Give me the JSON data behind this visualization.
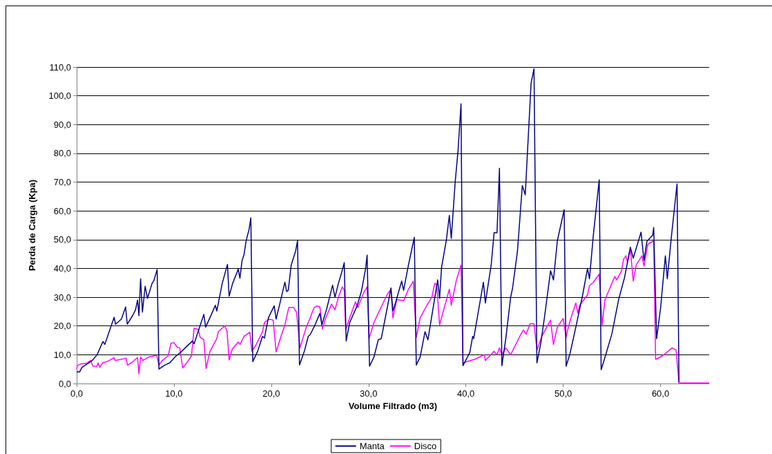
{
  "chart_data": {
    "type": "line",
    "xlabel": "Volume Filtrado (m3)",
    "ylabel": "Perda de Carga (Kpa)",
    "xlim": [
      0,
      65
    ],
    "xticks": [
      {
        "value": 0,
        "label": "0,0"
      },
      {
        "value": 10,
        "label": "10,0"
      },
      {
        "value": 20,
        "label": "20,0"
      },
      {
        "value": 30,
        "label": "30,0"
      },
      {
        "value": 40,
        "label": "40,0"
      },
      {
        "value": 50,
        "label": "50,0"
      },
      {
        "value": 60,
        "label": "60,0"
      }
    ],
    "ylim": [
      0,
      110
    ],
    "yticks": [
      {
        "value": 0,
        "label": "0,0"
      },
      {
        "value": 10,
        "label": "10,0"
      },
      {
        "value": 20,
        "label": "20,0"
      },
      {
        "value": 30,
        "label": "30,0"
      },
      {
        "value": 40,
        "label": "40,0"
      },
      {
        "value": 50,
        "label": "50,0"
      },
      {
        "value": 60,
        "label": "60,0"
      },
      {
        "value": 70,
        "label": "70,0"
      },
      {
        "value": 80,
        "label": "80,0"
      },
      {
        "value": 90,
        "label": "90,0"
      },
      {
        "value": 100,
        "label": "100,0"
      },
      {
        "value": 110,
        "label": "110,0"
      }
    ],
    "grid": "y",
    "legend": "bottom",
    "marker": "none",
    "line_style": "solid",
    "series": [
      {
        "name": "Manta",
        "color": "#000080",
        "x": [
          0,
          0.3,
          0.55,
          1.25,
          1.6,
          2.1,
          2.7,
          2.9,
          3.5,
          3.85,
          4.0,
          4.6,
          5.03,
          5.2,
          5.75,
          6.05,
          6.26,
          6.4,
          6.57,
          6.76,
          7.04,
          7.28,
          7.75,
          7.94,
          8.27,
          8.46,
          9.05,
          9.57,
          10.1,
          10.8,
          11.9,
          12.07,
          13.07,
          13.26,
          13.9,
          14.25,
          14.4,
          14.96,
          15.5,
          15.67,
          16.03,
          16.5,
          16.6,
          16.78,
          17.0,
          17.2,
          17.4,
          17.56,
          17.7,
          17.9,
          18.1,
          18.6,
          19.1,
          19.3,
          19.7,
          20.3,
          20.5,
          20.87,
          21.4,
          21.58,
          21.75,
          22.05,
          22.5,
          22.7,
          22.9,
          23.4,
          23.8,
          24.0,
          24.5,
          25.0,
          25.2,
          25.7,
          26.3,
          26.55,
          26.9,
          27.25,
          27.5,
          27.7,
          28.06,
          28.8,
          29.26,
          29.7,
          29.85,
          30.1,
          30.55,
          31.0,
          31.3,
          31.9,
          32.3,
          32.5,
          32.8,
          33.4,
          33.6,
          34.1,
          34.4,
          34.7,
          34.9,
          35.3,
          35.8,
          36.1,
          37.1,
          37.3,
          37.5,
          38.0,
          38.3,
          38.5,
          38.9,
          39.2,
          39.5,
          39.7,
          40.4,
          40.7,
          40.8,
          41.8,
          42.0,
          42.6,
          42.9,
          43.2,
          43.45,
          43.7,
          44.1,
          44.6,
          44.8,
          45.3,
          45.8,
          46.1,
          46.7,
          47.0,
          47.3,
          47.7,
          48.1,
          48.7,
          49.0,
          49.4,
          50.1,
          50.3,
          50.7,
          51.3,
          52.0,
          52.5,
          52.7,
          53.1,
          53.7,
          53.9,
          54.3,
          55.0,
          55.7,
          56.3,
          56.9,
          57.2,
          58.0,
          58.3,
          58.6,
          59.2,
          59.3,
          59.6,
          60.0,
          60.5,
          60.7,
          61.1,
          61.7,
          61.9
        ],
        "values": [
          4,
          4,
          5.6,
          7.2,
          8,
          10,
          14.6,
          13.6,
          19.6,
          23,
          20.6,
          22.4,
          26.6,
          20.6,
          23.6,
          25.6,
          29,
          23.6,
          36.4,
          24.8,
          33.8,
          29.6,
          34.8,
          35.8,
          39.6,
          5,
          6.4,
          7.2,
          9.2,
          11.2,
          14.8,
          13.8,
          24,
          19.6,
          24.4,
          27.2,
          25.2,
          34.8,
          41.4,
          30.4,
          34.8,
          38.8,
          39.8,
          36.6,
          42.8,
          44.8,
          49.2,
          51.6,
          53.2,
          57.6,
          7.6,
          11.2,
          16.4,
          15.8,
          22.8,
          27,
          22.4,
          27.6,
          35.2,
          32,
          32.4,
          41.2,
          46,
          49.6,
          6.4,
          11.2,
          16.4,
          17,
          20.4,
          24.4,
          20.4,
          26,
          34.2,
          30,
          34.8,
          38.8,
          42,
          14.8,
          21.2,
          26.8,
          32,
          40,
          44.6,
          6,
          9.2,
          15.2,
          15.6,
          26,
          33.2,
          25.2,
          28.4,
          35.6,
          32.4,
          41.2,
          46,
          50.8,
          6.4,
          9.2,
          18,
          15.2,
          36,
          29.6,
          40.4,
          50,
          58.4,
          50.4,
          70,
          81.2,
          97.2,
          6.2,
          10.8,
          16.4,
          15.6,
          35.2,
          28,
          41.2,
          52.4,
          52.4,
          74.8,
          6.2,
          15.6,
          30,
          33.2,
          46,
          68.8,
          65.6,
          104.4,
          109.4,
          7.2,
          14,
          23.6,
          39.2,
          36,
          49.6,
          60.4,
          6,
          10.4,
          19.6,
          30.8,
          40,
          36.4,
          51.6,
          70.8,
          4.8,
          9.2,
          17.2,
          29.2,
          36.8,
          47.4,
          43.6,
          52.6,
          42.8,
          49.4,
          51.6,
          54.2,
          15.6,
          26,
          44.4,
          36.4,
          50.4,
          69.4,
          0.4
        ]
      },
      {
        "name": "Disco",
        "color": "#ff00ff",
        "x": [
          0,
          0.07,
          0.43,
          1.0,
          1.44,
          1.68,
          2.1,
          2.2,
          2.37,
          2.67,
          3.14,
          3.85,
          3.97,
          5.08,
          5.22,
          5.63,
          6.26,
          6.4,
          6.57,
          6.8,
          7.4,
          8.22,
          8.46,
          8.8,
          9.4,
          9.7,
          10.0,
          10.35,
          10.6,
          10.9,
          11.4,
          11.8,
          12.07,
          12.5,
          12.7,
          13.07,
          13.3,
          13.7,
          14.4,
          14.56,
          15.2,
          15.45,
          15.67,
          16.0,
          16.6,
          16.8,
          17.2,
          17.8,
          18.0,
          18.4,
          19.1,
          19.3,
          19.8,
          20.2,
          20.5,
          21.0,
          21.4,
          21.8,
          22.3,
          22.6,
          22.95,
          23.6,
          23.95,
          24.4,
          24.7,
          25.0,
          25.25,
          25.6,
          26.2,
          26.55,
          26.9,
          27.3,
          27.5,
          27.65,
          28.06,
          28.65,
          28.9,
          29.5,
          29.85,
          30.05,
          30.55,
          31.1,
          31.9,
          32.3,
          32.5,
          32.9,
          33.6,
          34.1,
          34.6,
          34.9,
          35.3,
          36.0,
          36.5,
          36.8,
          37.0,
          37.3,
          38.3,
          38.5,
          39.0,
          39.5,
          39.7,
          40.9,
          41.9,
          42.0,
          42.9,
          43.2,
          43.45,
          43.7,
          44.1,
          44.6,
          45.6,
          45.9,
          46.2,
          46.6,
          47.0,
          47.3,
          47.8,
          48.7,
          49.0,
          49.4,
          50.0,
          50.3,
          50.5,
          50.8,
          51.3,
          51.5,
          51.7,
          52.5,
          52.7,
          53.1,
          53.7,
          54.0,
          54.3,
          55.3,
          55.5,
          56.0,
          56.2,
          56.45,
          56.6,
          56.9,
          57.2,
          57.5,
          58.1,
          58.3,
          58.7,
          59.3,
          59.5,
          60.2,
          61.0,
          61.2,
          61.6,
          61.9,
          65
        ],
        "values": [
          5,
          6.2,
          6.8,
          7,
          8,
          6,
          6,
          7.2,
          5.6,
          7.2,
          7.6,
          9,
          8,
          8.8,
          6.4,
          7.2,
          9,
          3.4,
          9.2,
          8,
          9.2,
          9.8,
          6.4,
          8,
          9.6,
          14,
          14.2,
          12.6,
          12.4,
          5.4,
          7.6,
          9.6,
          19.2,
          18.8,
          16,
          15.2,
          5.2,
          11.2,
          15.6,
          18,
          20,
          18.4,
          8.2,
          12,
          14.4,
          13.6,
          16.4,
          17.8,
          11.2,
          13.2,
          18,
          21.2,
          22.4,
          22,
          11,
          16.4,
          20.4,
          26.4,
          26.4,
          24.8,
          12.4,
          19.6,
          22.4,
          26.4,
          27,
          26.6,
          19,
          22.8,
          27.6,
          25.6,
          30,
          33.6,
          32.4,
          18.8,
          22.8,
          28.4,
          26.4,
          31.6,
          33.6,
          15.6,
          21.2,
          25.2,
          30.8,
          32.8,
          22.8,
          29.2,
          28.8,
          32.8,
          35.6,
          16,
          22.8,
          27.2,
          30,
          34.8,
          34.4,
          20.4,
          32.8,
          27.2,
          35.6,
          41.2,
          7.2,
          8.4,
          10,
          8,
          11.2,
          10,
          12.4,
          10,
          12.4,
          10,
          16.8,
          18.6,
          17.2,
          20.8,
          20.8,
          11.6,
          16.4,
          22,
          13.6,
          19.6,
          22.6,
          16,
          19.2,
          22.8,
          28,
          24.4,
          27.2,
          30.8,
          34,
          35.2,
          38,
          20.4,
          29.2,
          37.2,
          36,
          39.2,
          43.2,
          44.4,
          42,
          46.8,
          35.6,
          41.2,
          44.4,
          40.8,
          48.4,
          49.6,
          8.4,
          9.6,
          11.8,
          12.4,
          11.6,
          0.2,
          0.2
        ]
      }
    ]
  }
}
